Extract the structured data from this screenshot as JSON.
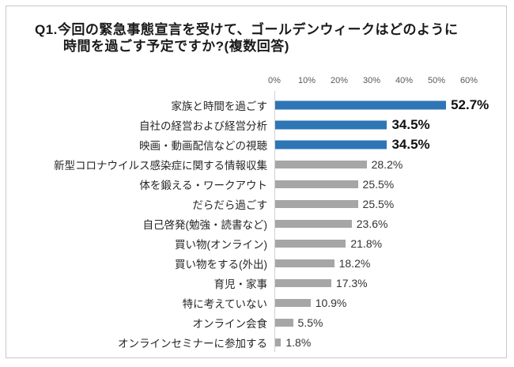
{
  "page": {
    "background": "#ffffff",
    "frame_border_color": "#c9c9c9"
  },
  "header": {
    "title_line1": "Q1.今回の緊急事態宣言を受けて、ゴールデンウィークはどのように",
    "title_line2": "時間を過ごす予定ですか?(複数回答)"
  },
  "chart_data": {
    "type": "bar",
    "orientation": "horizontal",
    "title": "Q1.今回の緊急事態宣言を受けて、ゴールデンウィークはどのように時間を過ごす予定ですか?(複数回答)",
    "categories": [
      "家族と時間を過ごす",
      "自社の経営および経営分析",
      "映画・動画配信などの視聴",
      "新型コロナウイルス感染症に関する情報収集",
      "体を鍛える・ワークアウト",
      "だらだら過ごす",
      "自己啓発(勉強・読書など)",
      "買い物(オンライン)",
      "買い物をする(外出)",
      "育児・家事",
      "特に考えていない",
      "オンライン会食",
      "オンラインセミナーに参加する"
    ],
    "values": [
      52.7,
      34.5,
      34.5,
      28.2,
      25.5,
      25.5,
      23.6,
      21.8,
      18.2,
      17.3,
      10.9,
      5.5,
      1.8
    ],
    "value_labels": [
      "52.7%",
      "34.5%",
      "34.5%",
      "28.2%",
      "25.5%",
      "25.5%",
      "23.6%",
      "21.8%",
      "18.2%",
      "17.3%",
      "10.9%",
      "5.5%",
      "1.8%"
    ],
    "x_ticks": [
      "0%",
      "10%",
      "20%",
      "30%",
      "40%",
      "50%",
      "60%"
    ],
    "xlim": [
      0,
      60
    ],
    "grid": false,
    "legend": "none",
    "highlight_first_n": 3,
    "colors": {
      "highlight_bar": "#2E75B6",
      "default_bar": "#A6A6A6",
      "axis_line": "#d0d0d0",
      "tick_label": "#595959",
      "category_label": "#262626",
      "value_label": "#333333",
      "value_label_highlight": "#111111"
    }
  }
}
